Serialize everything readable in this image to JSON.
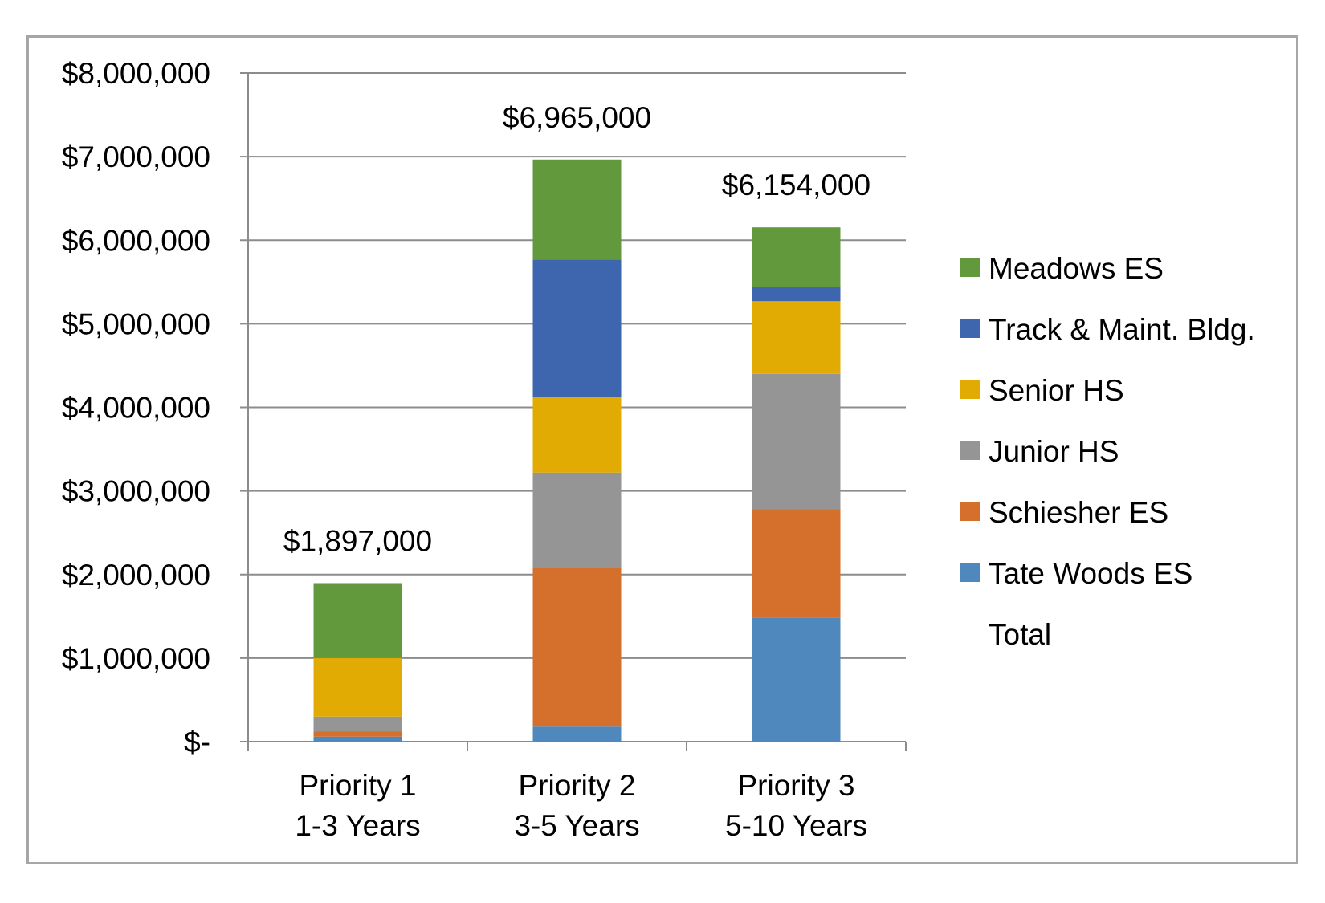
{
  "chart_data": {
    "type": "bar",
    "stacked": true,
    "categories": [
      [
        "Priority 1",
        "1-3 Years"
      ],
      [
        "Priority 2",
        "3-5 Years"
      ],
      [
        "Priority 3",
        "5-10 Years"
      ]
    ],
    "series": [
      {
        "name": "Tate Woods ES",
        "color": "#4f88bd",
        "values": [
          60000,
          180000,
          1480000
        ]
      },
      {
        "name": "Schiesher ES",
        "color": "#d46f2c",
        "values": [
          60000,
          1900000,
          1300000
        ]
      },
      {
        "name": "Junior HS",
        "color": "#959595",
        "values": [
          180000,
          1140000,
          1620000
        ]
      },
      {
        "name": "Senior HS",
        "color": "#e2ab04",
        "values": [
          700000,
          900000,
          870000
        ]
      },
      {
        "name": "Track & Maint. Bldg.",
        "color": "#3e66ae",
        "values": [
          0,
          1650000,
          170000
        ]
      },
      {
        "name": "Meadows ES",
        "color": "#63993d",
        "values": [
          897000,
          1195000,
          714000
        ]
      }
    ],
    "totals": {
      "name": "Total",
      "values": [
        1897000,
        6965000,
        6154000
      ],
      "labels": [
        "$1,897,000",
        "$6,965,000",
        "$6,154,000"
      ]
    },
    "y_ticks": [
      {
        "value": 0,
        "label": "$-"
      },
      {
        "value": 1000000,
        "label": "$1,000,000"
      },
      {
        "value": 2000000,
        "label": "$2,000,000"
      },
      {
        "value": 3000000,
        "label": "$3,000,000"
      },
      {
        "value": 4000000,
        "label": "$4,000,000"
      },
      {
        "value": 5000000,
        "label": "$5,000,000"
      },
      {
        "value": 6000000,
        "label": "$6,000,000"
      },
      {
        "value": 7000000,
        "label": "$7,000,000"
      },
      {
        "value": 8000000,
        "label": "$8,000,000"
      }
    ],
    "ylim": [
      0,
      8000000
    ],
    "grid": true,
    "legend": {
      "position": "right",
      "entries": [
        "Meadows ES",
        "Track & Maint. Bldg.",
        "Senior HS",
        "Junior HS",
        "Schiesher ES",
        "Tate Woods ES",
        "Total"
      ]
    },
    "title": "",
    "xlabel": "",
    "ylabel": ""
  }
}
